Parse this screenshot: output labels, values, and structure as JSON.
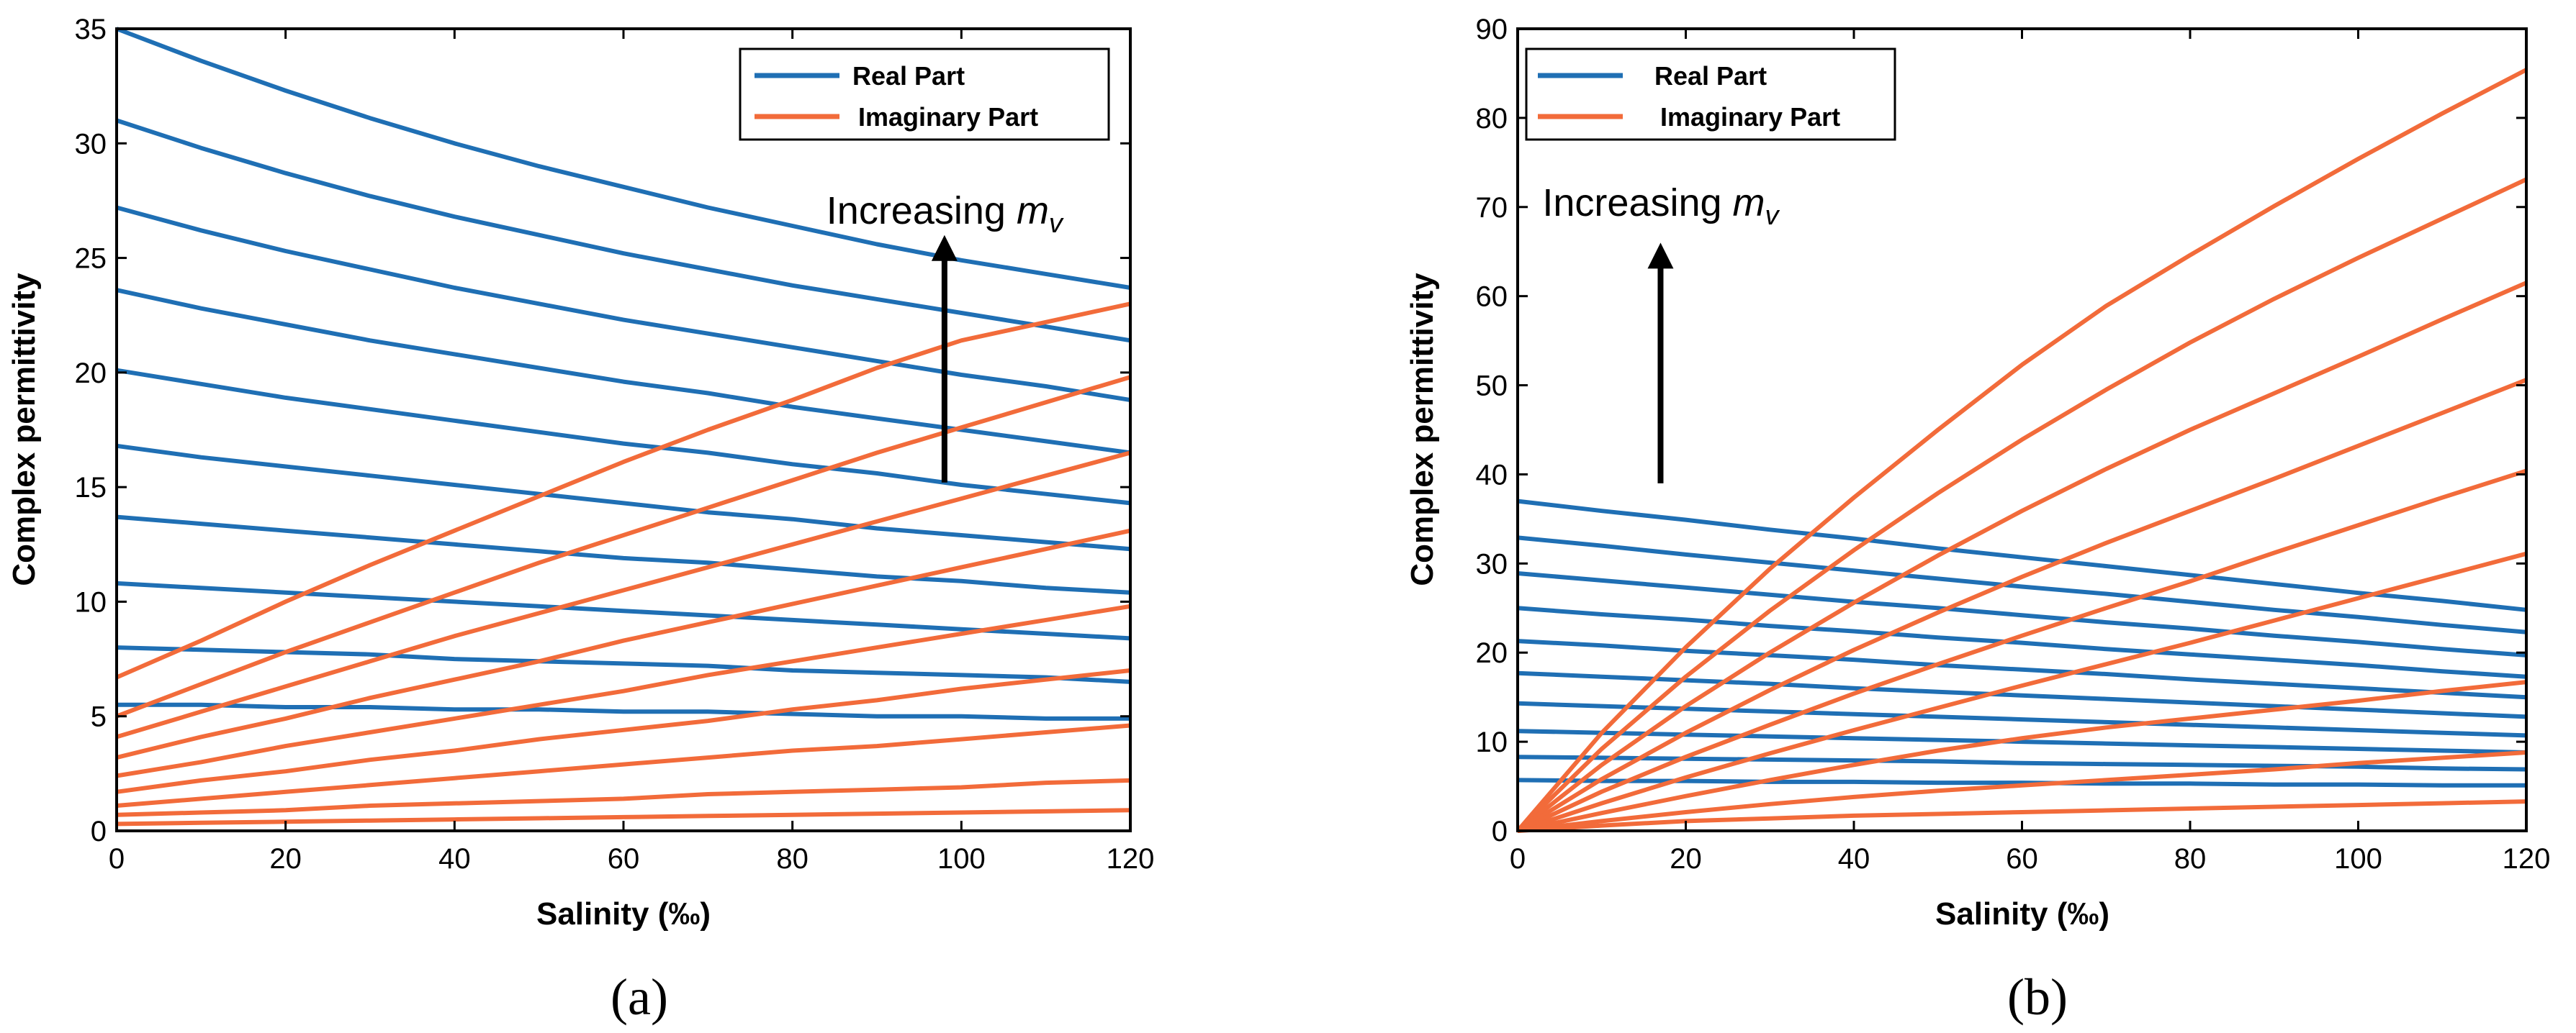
{
  "colors": {
    "real": "#1F6FB4",
    "imaginary": "#F26B3A",
    "axis": "#000000"
  },
  "chart_data": [
    {
      "type": "line",
      "panel_label": "(a)",
      "xlabel": "Salinity (‰)",
      "ylabel": "Complex permittivity",
      "xlim": [
        0,
        120
      ],
      "ylim": [
        0,
        35
      ],
      "xticks": [
        "0",
        "20",
        "40",
        "60",
        "80",
        "100",
        "120"
      ],
      "yticks": [
        "0",
        "5",
        "10",
        "15",
        "20",
        "25",
        "30",
        "35"
      ],
      "legend": {
        "placement": "top-right",
        "entries": [
          "Real Part",
          "Imaginary Part"
        ]
      },
      "annotation": {
        "text": "Increasing ",
        "math": "m",
        "sub": "v",
        "x": 98,
        "y": 26.5,
        "arrow_from": [
          98,
          15.2
        ],
        "arrow_to": [
          98,
          26
        ]
      },
      "x": [
        0,
        10,
        20,
        30,
        40,
        50,
        60,
        70,
        80,
        90,
        100,
        110,
        120
      ],
      "series": [
        {
          "name": "Real Part",
          "kind": "real",
          "values": [
            35.0,
            33.6,
            32.3,
            31.1,
            30.0,
            29.0,
            28.1,
            27.2,
            26.4,
            25.6,
            24.9,
            24.3,
            23.7
          ]
        },
        {
          "name": "Real Part",
          "kind": "real",
          "values": [
            31.0,
            29.8,
            28.7,
            27.7,
            26.8,
            26.0,
            25.2,
            24.5,
            23.8,
            23.2,
            22.6,
            22.0,
            21.4
          ]
        },
        {
          "name": "Real Part",
          "kind": "real",
          "values": [
            27.2,
            26.2,
            25.3,
            24.5,
            23.7,
            23.0,
            22.3,
            21.7,
            21.1,
            20.5,
            19.9,
            19.4,
            18.8
          ]
        },
        {
          "name": "Real Part",
          "kind": "real",
          "values": [
            23.6,
            22.8,
            22.1,
            21.4,
            20.8,
            20.2,
            19.6,
            19.1,
            18.5,
            18.0,
            17.5,
            17.0,
            16.5
          ]
        },
        {
          "name": "Real Part",
          "kind": "real",
          "values": [
            20.1,
            19.5,
            18.9,
            18.4,
            17.9,
            17.4,
            16.9,
            16.5,
            16.0,
            15.6,
            15.1,
            14.7,
            14.3
          ]
        },
        {
          "name": "Real Part",
          "kind": "real",
          "values": [
            16.8,
            16.3,
            15.9,
            15.5,
            15.1,
            14.7,
            14.3,
            13.9,
            13.6,
            13.2,
            12.9,
            12.6,
            12.3
          ]
        },
        {
          "name": "Real Part",
          "kind": "real",
          "values": [
            13.7,
            13.4,
            13.1,
            12.8,
            12.5,
            12.2,
            11.9,
            11.7,
            11.4,
            11.1,
            10.9,
            10.6,
            10.4
          ]
        },
        {
          "name": "Real Part",
          "kind": "real",
          "values": [
            10.8,
            10.6,
            10.4,
            10.2,
            10.0,
            9.8,
            9.6,
            9.4,
            9.2,
            9.0,
            8.8,
            8.6,
            8.4
          ]
        },
        {
          "name": "Real Part",
          "kind": "real",
          "values": [
            8.0,
            7.9,
            7.8,
            7.7,
            7.5,
            7.4,
            7.3,
            7.2,
            7.0,
            6.9,
            6.8,
            6.7,
            6.5
          ]
        },
        {
          "name": "Real Part",
          "kind": "real",
          "values": [
            5.5,
            5.5,
            5.4,
            5.4,
            5.3,
            5.3,
            5.2,
            5.2,
            5.1,
            5.0,
            5.0,
            4.9,
            4.9
          ]
        },
        {
          "name": "Imaginary Part",
          "kind": "imag",
          "values": [
            6.7,
            8.3,
            10.0,
            11.6,
            13.1,
            14.6,
            16.1,
            17.5,
            18.8,
            20.2,
            21.4,
            22.2,
            23.0
          ]
        },
        {
          "name": "Imaginary Part",
          "kind": "imag",
          "values": [
            5.0,
            6.4,
            7.8,
            9.1,
            10.4,
            11.7,
            12.9,
            14.1,
            15.3,
            16.5,
            17.6,
            18.7,
            19.8
          ]
        },
        {
          "name": "Imaginary Part",
          "kind": "imag",
          "values": [
            4.1,
            5.2,
            6.3,
            7.4,
            8.5,
            9.5,
            10.5,
            11.5,
            12.5,
            13.5,
            14.5,
            15.5,
            16.5
          ]
        },
        {
          "name": "Imaginary Part",
          "kind": "imag",
          "values": [
            3.2,
            4.1,
            4.9,
            5.8,
            6.6,
            7.4,
            8.3,
            9.1,
            9.9,
            10.7,
            11.5,
            12.3,
            13.1
          ]
        },
        {
          "name": "Imaginary Part",
          "kind": "imag",
          "values": [
            2.4,
            3.0,
            3.7,
            4.3,
            4.9,
            5.5,
            6.1,
            6.8,
            7.4,
            8.0,
            8.6,
            9.2,
            9.8
          ]
        },
        {
          "name": "Imaginary Part",
          "kind": "imag",
          "values": [
            1.7,
            2.2,
            2.6,
            3.1,
            3.5,
            4.0,
            4.4,
            4.8,
            5.3,
            5.7,
            6.2,
            6.6,
            7.0
          ]
        },
        {
          "name": "Imaginary Part",
          "kind": "imag",
          "values": [
            1.1,
            1.4,
            1.7,
            2.0,
            2.3,
            2.6,
            2.9,
            3.2,
            3.5,
            3.7,
            4.0,
            4.3,
            4.6
          ]
        },
        {
          "name": "Imaginary Part",
          "kind": "imag",
          "values": [
            0.7,
            0.8,
            0.9,
            1.1,
            1.2,
            1.3,
            1.4,
            1.6,
            1.7,
            1.8,
            1.9,
            2.1,
            2.2
          ]
        },
        {
          "name": "Imaginary Part",
          "kind": "imag",
          "values": [
            0.3,
            0.35,
            0.4,
            0.45,
            0.5,
            0.55,
            0.6,
            0.65,
            0.7,
            0.75,
            0.8,
            0.85,
            0.9
          ]
        }
      ]
    },
    {
      "type": "line",
      "panel_label": "(b)",
      "xlabel": "Salinity (‰)",
      "ylabel": "Complex permittivity",
      "xlim": [
        0,
        120
      ],
      "ylim": [
        0,
        90
      ],
      "xticks": [
        "0",
        "20",
        "40",
        "60",
        "80",
        "100",
        "120"
      ],
      "yticks": [
        "0",
        "10",
        "20",
        "30",
        "40",
        "50",
        "60",
        "70",
        "80",
        "90"
      ],
      "legend": {
        "placement": "top-left",
        "entries": [
          "Real Part",
          "Imaginary Part"
        ]
      },
      "annotation": {
        "text": "Increasing ",
        "math": "m",
        "sub": "v",
        "x": 17,
        "y": 69,
        "arrow_from": [
          17,
          39
        ],
        "arrow_to": [
          17,
          66
        ]
      },
      "x": [
        0,
        10,
        20,
        30,
        40,
        50,
        60,
        70,
        80,
        90,
        100,
        110,
        120
      ],
      "series": [
        {
          "name": "Real Part",
          "kind": "real",
          "values": [
            37.0,
            35.9,
            34.9,
            33.8,
            32.8,
            31.7,
            30.7,
            29.7,
            28.7,
            27.7,
            26.7,
            25.8,
            24.8
          ]
        },
        {
          "name": "Real Part",
          "kind": "real",
          "values": [
            32.9,
            32.0,
            31.0,
            30.1,
            29.2,
            28.3,
            27.4,
            26.6,
            25.7,
            24.8,
            24.0,
            23.1,
            22.3
          ]
        },
        {
          "name": "Real Part",
          "kind": "real",
          "values": [
            28.9,
            28.1,
            27.3,
            26.5,
            25.7,
            25.0,
            24.2,
            23.4,
            22.7,
            21.9,
            21.2,
            20.4,
            19.7
          ]
        },
        {
          "name": "Real Part",
          "kind": "real",
          "values": [
            25.0,
            24.3,
            23.7,
            23.0,
            22.4,
            21.7,
            21.1,
            20.4,
            19.8,
            19.2,
            18.6,
            17.9,
            17.3
          ]
        },
        {
          "name": "Real Part",
          "kind": "real",
          "values": [
            21.3,
            20.8,
            20.2,
            19.7,
            19.2,
            18.6,
            18.1,
            17.6,
            17.0,
            16.5,
            16.0,
            15.5,
            15.0
          ]
        },
        {
          "name": "Real Part",
          "kind": "real",
          "values": [
            17.7,
            17.3,
            16.9,
            16.5,
            16.0,
            15.6,
            15.2,
            14.8,
            14.4,
            14.0,
            13.6,
            13.2,
            12.8
          ]
        },
        {
          "name": "Real Part",
          "kind": "real",
          "values": [
            14.3,
            14.0,
            13.7,
            13.4,
            13.1,
            12.8,
            12.5,
            12.2,
            11.9,
            11.6,
            11.3,
            11.0,
            10.7
          ]
        },
        {
          "name": "Real Part",
          "kind": "real",
          "values": [
            11.2,
            11.0,
            10.8,
            10.6,
            10.4,
            10.2,
            10.0,
            9.8,
            9.6,
            9.4,
            9.2,
            9.0,
            8.8
          ]
        },
        {
          "name": "Real Part",
          "kind": "real",
          "values": [
            8.3,
            8.2,
            8.1,
            8.0,
            7.9,
            7.8,
            7.6,
            7.5,
            7.4,
            7.3,
            7.2,
            7.0,
            6.9
          ]
        },
        {
          "name": "Real Part",
          "kind": "real",
          "values": [
            5.7,
            5.6,
            5.6,
            5.5,
            5.5,
            5.4,
            5.4,
            5.3,
            5.3,
            5.2,
            5.2,
            5.1,
            5.1
          ]
        },
        {
          "name": "Imaginary Part",
          "kind": "imag",
          "values": [
            0,
            11.0,
            20.6,
            29.4,
            37.4,
            45.0,
            52.3,
            58.9,
            64.6,
            70.1,
            75.4,
            80.5,
            85.4
          ]
        },
        {
          "name": "Imaginary Part",
          "kind": "imag",
          "values": [
            0,
            9.2,
            17.3,
            24.7,
            31.5,
            37.9,
            43.9,
            49.5,
            54.8,
            59.7,
            64.3,
            68.7,
            73.1
          ]
        },
        {
          "name": "Imaginary Part",
          "kind": "imag",
          "values": [
            0,
            7.4,
            14.0,
            20.0,
            25.6,
            30.9,
            35.9,
            40.6,
            45.0,
            49.1,
            53.2,
            57.4,
            61.5
          ]
        },
        {
          "name": "Imaginary Part",
          "kind": "imag",
          "values": [
            0,
            5.8,
            11.0,
            15.8,
            20.3,
            24.5,
            28.5,
            32.3,
            35.9,
            39.5,
            43.2,
            46.9,
            50.6
          ]
        },
        {
          "name": "Imaginary Part",
          "kind": "imag",
          "values": [
            0,
            4.4,
            8.3,
            11.9,
            15.4,
            18.7,
            21.9,
            25.0,
            28.0,
            31.2,
            34.3,
            37.4,
            40.4
          ]
        },
        {
          "name": "Imaginary Part",
          "kind": "imag",
          "values": [
            0,
            3.1,
            6.0,
            8.7,
            11.3,
            13.8,
            16.3,
            18.7,
            21.1,
            23.6,
            26.1,
            28.6,
            31.1
          ]
        },
        {
          "name": "Imaginary Part",
          "kind": "imag",
          "values": [
            0,
            2.0,
            3.9,
            5.7,
            7.4,
            9.0,
            10.4,
            11.6,
            12.6,
            13.6,
            14.6,
            15.7,
            16.7
          ]
        },
        {
          "name": "Imaginary Part",
          "kind": "imag",
          "values": [
            0,
            1.1,
            2.1,
            3.0,
            3.8,
            4.5,
            5.1,
            5.7,
            6.3,
            6.9,
            7.6,
            8.2,
            8.8
          ]
        },
        {
          "name": "Imaginary Part",
          "kind": "imag",
          "values": [
            0,
            0.6,
            1.1,
            1.4,
            1.7,
            1.9,
            2.1,
            2.3,
            2.5,
            2.7,
            2.9,
            3.1,
            3.3
          ]
        }
      ]
    }
  ]
}
